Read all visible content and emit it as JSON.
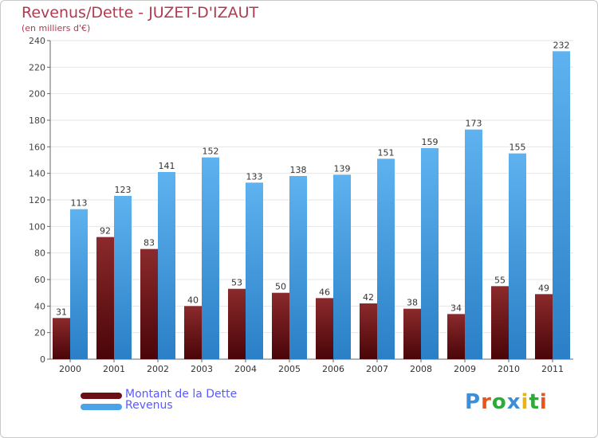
{
  "header": {
    "title": "Revenus/Dette - JUZET-D'IZAUT",
    "subtitle": "(en milliers d'€)"
  },
  "legend": {
    "items": [
      {
        "label": "Montant de la Dette",
        "color": "#6b0f14"
      },
      {
        "label": "Revenus",
        "color": "#4aa3e8"
      }
    ]
  },
  "logo": {
    "text": "Proxiti"
  },
  "colors": {
    "debt_top": "#8b2a2c",
    "debt_bottom": "#4a0508",
    "revenue_top": "#5eb2ef",
    "revenue_bottom": "#2a7fc6",
    "title": "#b03a50",
    "legend_text": "#5a5aff"
  },
  "chart_data": {
    "type": "bar",
    "categories": [
      "2000",
      "2001",
      "2002",
      "2003",
      "2004",
      "2005",
      "2006",
      "2007",
      "2008",
      "2009",
      "2010",
      "2011"
    ],
    "series": [
      {
        "name": "Montant de la Dette",
        "values": [
          31,
          92,
          83,
          40,
          53,
          50,
          46,
          42,
          38,
          34,
          55,
          49
        ]
      },
      {
        "name": "Revenus",
        "values": [
          113,
          123,
          141,
          152,
          133,
          138,
          139,
          151,
          159,
          173,
          155,
          232
        ]
      }
    ],
    "ylim": [
      0,
      240
    ],
    "yticks": [
      0,
      20,
      40,
      60,
      80,
      100,
      120,
      140,
      160,
      180,
      200,
      220,
      240
    ],
    "grid": true,
    "legend_position": "bottom-left"
  }
}
